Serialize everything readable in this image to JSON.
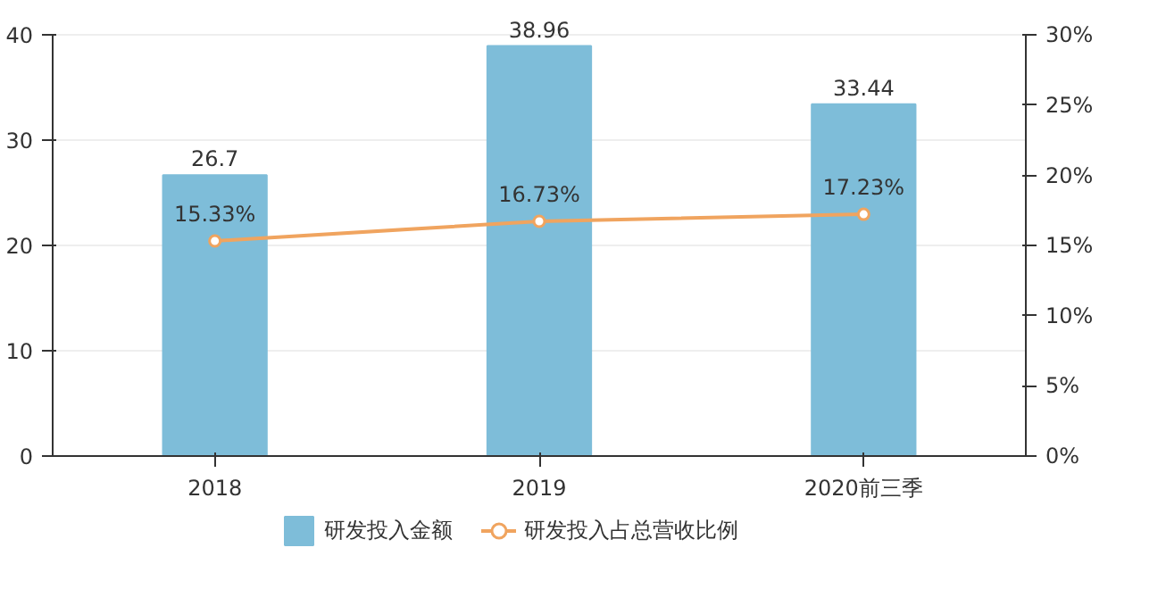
{
  "chart_data": {
    "type": "bar",
    "categories": [
      "2018",
      "2019",
      "2020前三季"
    ],
    "series": [
      {
        "name": "研发投入金额",
        "color": "#7ebdd9",
        "values": [
          26.7,
          38.96,
          33.44
        ],
        "value_labels": [
          "26.7",
          "38.96",
          "33.44"
        ]
      },
      {
        "name": "研发投入占总营收比例",
        "type": "line",
        "axis": "y2",
        "color": "#f0a45f",
        "values": [
          15.33,
          16.73,
          17.23
        ],
        "value_labels": [
          "15.33%",
          "16.73%",
          "17.23%"
        ],
        "marker": "circle",
        "line_style": "solid"
      }
    ],
    "ylim": [
      0,
      40
    ],
    "yticks": [
      0,
      10,
      20,
      30,
      40
    ],
    "y2lim": [
      0,
      30
    ],
    "y2ticks": [
      {
        "value": 0,
        "label": "0%"
      },
      {
        "value": 5,
        "label": "5%"
      },
      {
        "value": 10,
        "label": "10%"
      },
      {
        "value": 15,
        "label": "15%"
      },
      {
        "value": 20,
        "label": "20%"
      },
      {
        "value": 25,
        "label": "25%"
      },
      {
        "value": 30,
        "label": "30%"
      }
    ],
    "grid": "y",
    "legend": "bottom"
  }
}
